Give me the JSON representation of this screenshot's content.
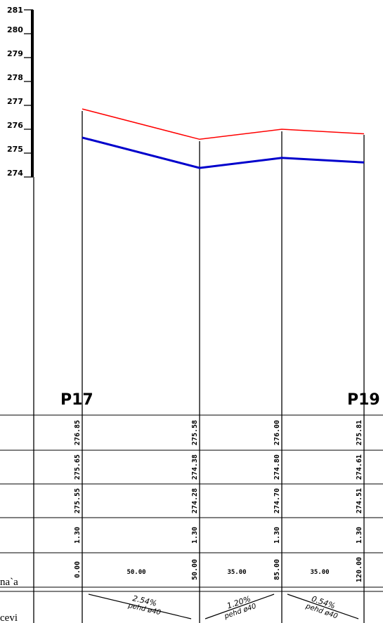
{
  "scale": {
    "ticks": [
      "281",
      "280",
      "279",
      "278",
      "277",
      "276",
      "275",
      "274"
    ]
  },
  "nodes": {
    "start": "P17",
    "end": "P19"
  },
  "profile": {
    "top_elevation": [
      276.85,
      275.58,
      276.0,
      275.81
    ],
    "pipe_elevation": [
      275.65,
      274.38,
      274.8,
      274.61
    ]
  },
  "rows": {
    "r1": [
      "276.85",
      "275.58",
      "276.00",
      "275.81"
    ],
    "r2": [
      "275.65",
      "274.38",
      "274.80",
      "274.61"
    ],
    "r3": [
      "275.55",
      "274.28",
      "274.70",
      "274.51"
    ],
    "r4": [
      "1.30",
      "1.30",
      "1.30",
      "1.30"
    ],
    "r5": [
      "0.00",
      "50.00",
      "85.00",
      "120.00"
    ]
  },
  "segment_lengths": [
    "50.00",
    "35.00",
    "35.00"
  ],
  "slopes": [
    {
      "slope": "2.54%",
      "pipe": "pehd ø40"
    },
    {
      "slope": "1.20%",
      "pipe": "pehd ø40"
    },
    {
      "slope": "0.54%",
      "pipe": "pehd ø40"
    }
  ],
  "row_labels": {
    "distance": "na`a",
    "pipe": "cevi"
  },
  "colors": {
    "terrain": "#ff0000",
    "pipe": "#0000cc",
    "lines": "#000000"
  }
}
